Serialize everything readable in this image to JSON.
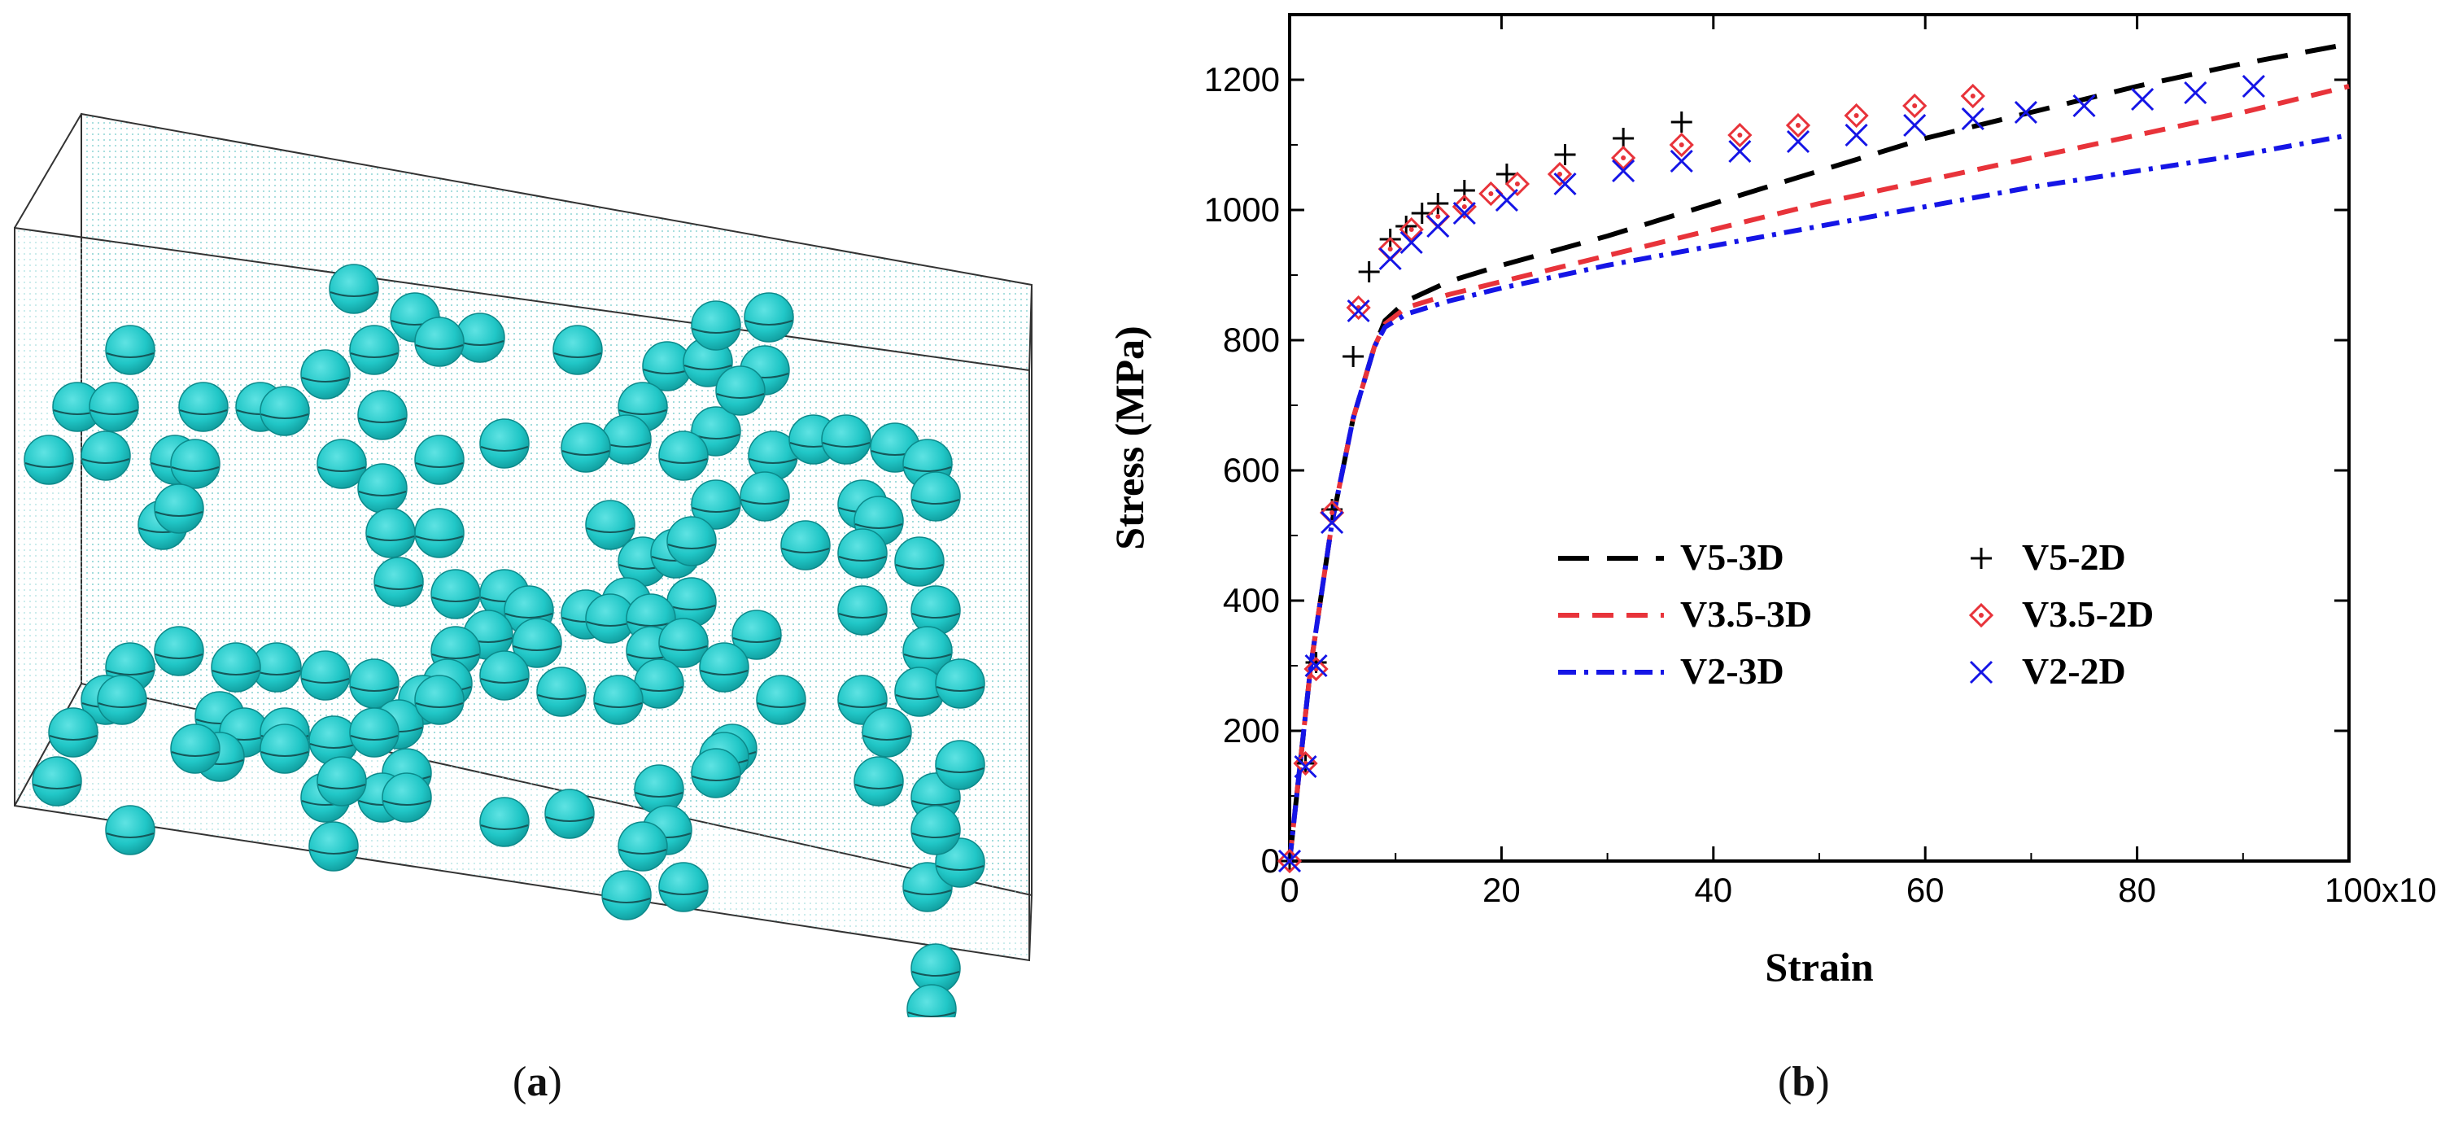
{
  "panels": {
    "a": {
      "label_open": "(",
      "label_letter": "a",
      "label_close": ")"
    },
    "b": {
      "label_open": "(",
      "label_letter": "b",
      "label_close": ")"
    }
  },
  "panel_a_colors": {
    "sphere": "#21c7c7",
    "sphere_shadow": "#0f8f90",
    "box_edge": "#333333",
    "dots": "#8fd5d5"
  },
  "chart_data": {
    "type": "line",
    "title": "",
    "xlabel": "Strain",
    "ylabel": "Stress (MPa)",
    "xlim": [
      0,
      0.1
    ],
    "ylim": [
      0,
      1300
    ],
    "x_ticks": [
      0,
      20,
      40,
      60,
      80,
      100
    ],
    "x_tick_labels": [
      "0",
      "20",
      "40",
      "60",
      "80",
      "100x10"
    ],
    "x_tick_exponent": "-3",
    "y_ticks": [
      0,
      200,
      400,
      600,
      800,
      1000,
      1200
    ],
    "y_tick_labels": [
      "0",
      "200",
      "400",
      "600",
      "800",
      "1000",
      "1200"
    ],
    "legend_position": "center-right",
    "series": [
      {
        "name": "V5-3D",
        "style": "long-dash",
        "color": "#000000",
        "x": [
          0,
          0.001,
          0.002,
          0.004,
          0.006,
          0.008,
          0.009,
          0.011,
          0.015,
          0.02,
          0.03,
          0.04,
          0.05,
          0.06,
          0.07,
          0.08,
          0.09,
          0.1
        ],
        "y": [
          0,
          150,
          300,
          520,
          680,
          790,
          830,
          860,
          890,
          915,
          960,
          1010,
          1060,
          1110,
          1150,
          1190,
          1225,
          1255
        ]
      },
      {
        "name": "V3.5-3D",
        "style": "dash",
        "color": "#e8333a",
        "x": [
          0,
          0.001,
          0.002,
          0.004,
          0.006,
          0.008,
          0.009,
          0.011,
          0.015,
          0.02,
          0.03,
          0.04,
          0.05,
          0.06,
          0.07,
          0.08,
          0.09,
          0.1
        ],
        "y": [
          0,
          150,
          300,
          520,
          680,
          790,
          825,
          850,
          870,
          890,
          930,
          970,
          1010,
          1045,
          1080,
          1115,
          1150,
          1190
        ]
      },
      {
        "name": "V2-3D",
        "style": "dash-dot",
        "color": "#1515e6",
        "x": [
          0,
          0.001,
          0.002,
          0.004,
          0.006,
          0.008,
          0.009,
          0.011,
          0.015,
          0.02,
          0.03,
          0.04,
          0.05,
          0.06,
          0.07,
          0.08,
          0.09,
          0.1
        ],
        "y": [
          0,
          150,
          300,
          520,
          680,
          790,
          820,
          840,
          860,
          880,
          915,
          945,
          975,
          1005,
          1035,
          1060,
          1085,
          1115
        ]
      },
      {
        "name": "V5-2D",
        "style": "marker-plus",
        "color": "#000000",
        "x": [
          0,
          0.0015,
          0.0025,
          0.004,
          0.006,
          0.0075,
          0.0095,
          0.011,
          0.0125,
          0.014,
          0.0165,
          0.0205,
          0.026,
          0.0315,
          0.037
        ],
        "y": [
          0,
          150,
          305,
          540,
          775,
          905,
          955,
          975,
          995,
          1010,
          1030,
          1055,
          1085,
          1110,
          1135
        ]
      },
      {
        "name": "V3.5-2D",
        "style": "marker-diamond",
        "color": "#e8333a",
        "x": [
          0,
          0.0015,
          0.0025,
          0.004,
          0.0065,
          0.0095,
          0.0115,
          0.014,
          0.0165,
          0.019,
          0.0215,
          0.0255,
          0.0315,
          0.037,
          0.0425,
          0.048,
          0.0535,
          0.059,
          0.0645
        ],
        "y": [
          0,
          150,
          295,
          535,
          850,
          940,
          970,
          990,
          1005,
          1025,
          1040,
          1055,
          1080,
          1100,
          1115,
          1130,
          1145,
          1160,
          1175
        ]
      },
      {
        "name": "V2-2D",
        "style": "marker-x",
        "color": "#1515e6",
        "x": [
          0,
          0.0015,
          0.0025,
          0.004,
          0.0065,
          0.0095,
          0.0115,
          0.014,
          0.0165,
          0.0205,
          0.026,
          0.0315,
          0.037,
          0.0425,
          0.048,
          0.0535,
          0.059,
          0.0645,
          0.0695,
          0.075,
          0.0805,
          0.0855,
          0.091
        ],
        "y": [
          0,
          145,
          300,
          520,
          845,
          925,
          950,
          975,
          995,
          1015,
          1040,
          1060,
          1075,
          1090,
          1105,
          1115,
          1130,
          1140,
          1150,
          1160,
          1170,
          1180,
          1190
        ]
      }
    ]
  }
}
